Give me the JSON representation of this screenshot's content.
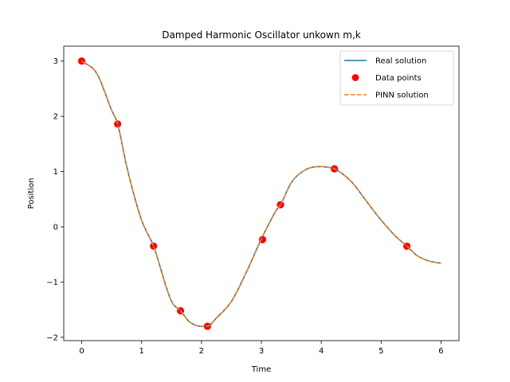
{
  "chart_data": {
    "type": "line",
    "title": "Damped Harmonic Oscillator unkown m,k",
    "xlabel": "Time",
    "ylabel": "Position",
    "xlim": [
      -0.3,
      6.3
    ],
    "ylim": [
      -2.06,
      3.27
    ],
    "x_ticks": [
      0,
      1,
      2,
      3,
      4,
      5,
      6
    ],
    "x_tick_labels": [
      "0",
      "1",
      "2",
      "3",
      "4",
      "5",
      "6"
    ],
    "y_ticks": [
      -2,
      -1,
      0,
      1,
      2,
      3
    ],
    "y_tick_labels": [
      "−2",
      "−1",
      "0",
      "1",
      "2",
      "3"
    ],
    "grid": false,
    "legend_position": "top-right",
    "series": [
      {
        "name": "Real solution",
        "kind": "line",
        "color": "#1f77b4",
        "x": [
          0,
          0.25,
          0.5,
          0.6,
          0.75,
          1.0,
          1.2,
          1.5,
          1.65,
          1.8,
          2.0,
          2.1,
          2.25,
          2.5,
          2.75,
          3.0,
          3.25,
          3.32,
          3.5,
          3.75,
          4.0,
          4.1,
          4.22,
          4.5,
          4.75,
          5.0,
          5.25,
          5.43,
          5.6,
          5.8,
          6.0
        ],
        "y": [
          3.0,
          2.78,
          2.11,
          1.86,
          1.1,
          0.12,
          -0.35,
          -1.35,
          -1.52,
          -1.72,
          -1.8,
          -1.8,
          -1.65,
          -1.35,
          -0.82,
          -0.22,
          0.3,
          0.4,
          0.8,
          1.04,
          1.09,
          1.08,
          1.05,
          0.82,
          0.47,
          0.12,
          -0.18,
          -0.35,
          -0.52,
          -0.62,
          -0.66
        ]
      },
      {
        "name": "Data points",
        "kind": "scatter",
        "color": "#ff0000",
        "x": [
          0.0,
          0.6,
          1.2,
          1.65,
          2.1,
          3.02,
          3.32,
          4.22,
          5.43
        ],
        "y": [
          3.0,
          1.86,
          -0.35,
          -1.52,
          -1.8,
          -0.23,
          0.4,
          1.05,
          -0.35
        ]
      },
      {
        "name": "PINN solution",
        "kind": "dashed-line",
        "color": "#ff7f0e",
        "x": [
          0,
          0.25,
          0.5,
          0.6,
          0.75,
          1.0,
          1.2,
          1.5,
          1.65,
          1.8,
          2.0,
          2.1,
          2.25,
          2.5,
          2.75,
          3.0,
          3.25,
          3.32,
          3.5,
          3.75,
          4.0,
          4.1,
          4.22,
          4.5,
          4.75,
          5.0,
          5.25,
          5.43,
          5.6,
          5.8,
          6.0
        ],
        "y": [
          3.0,
          2.78,
          2.11,
          1.86,
          1.1,
          0.12,
          -0.35,
          -1.35,
          -1.52,
          -1.72,
          -1.8,
          -1.8,
          -1.65,
          -1.35,
          -0.82,
          -0.22,
          0.3,
          0.4,
          0.8,
          1.04,
          1.09,
          1.08,
          1.05,
          0.82,
          0.47,
          0.12,
          -0.18,
          -0.35,
          -0.52,
          -0.62,
          -0.66
        ]
      }
    ]
  }
}
